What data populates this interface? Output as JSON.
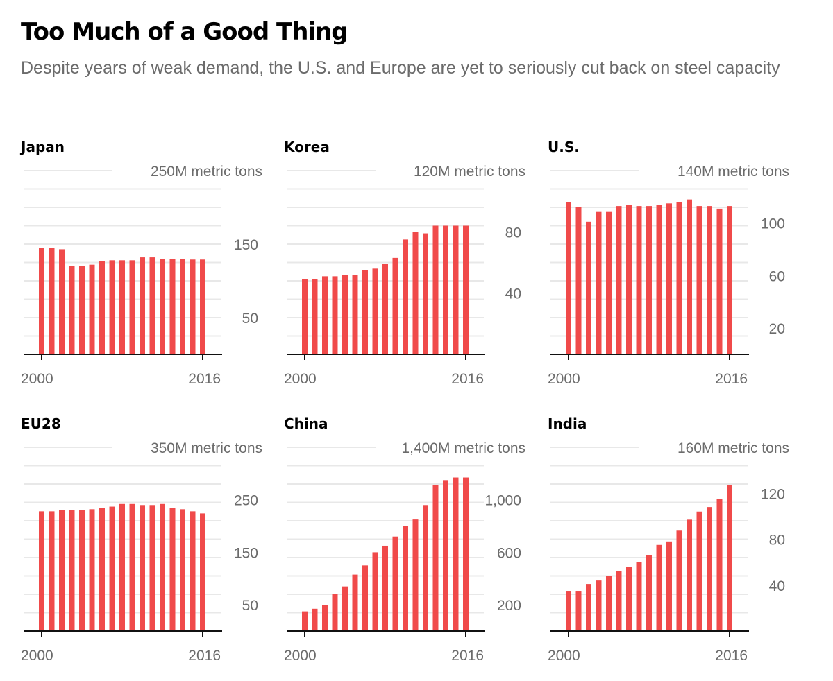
{
  "title": "Too Much of a Good Thing",
  "subtitle": "Despite years of weak demand, the U.S. and Europe are yet to seriously cut back on steel capacity",
  "colors": {
    "bar": "#f04a4a",
    "grid": "#e8e8e8",
    "axis": "#111111",
    "label": "#6b6b6b"
  },
  "chart_data": [
    {
      "type": "bar",
      "name": "Japan",
      "unit_label": "250M metric tons",
      "ylim": [
        0,
        250
      ],
      "yticks": [
        50,
        150
      ],
      "ytick_labels": [
        "50",
        "150"
      ],
      "x_tick_labels": [
        "2000",
        "2016"
      ],
      "x": [
        2000,
        2001,
        2002,
        2003,
        2004,
        2005,
        2006,
        2007,
        2008,
        2009,
        2010,
        2011,
        2012,
        2013,
        2014,
        2015,
        2016
      ],
      "values": [
        145,
        145,
        143,
        120,
        120,
        122,
        127,
        128,
        128,
        128,
        132,
        132,
        130,
        130,
        130,
        129,
        129
      ]
    },
    {
      "type": "bar",
      "name": "Korea",
      "unit_label": "120M metric tons",
      "ylim": [
        0,
        120
      ],
      "yticks": [
        40,
        80
      ],
      "ytick_labels": [
        "40",
        "80"
      ],
      "x_tick_labels": [
        "2000",
        "2016"
      ],
      "x": [
        2000,
        2001,
        2002,
        2003,
        2004,
        2005,
        2006,
        2007,
        2008,
        2009,
        2010,
        2011,
        2012,
        2013,
        2014,
        2015,
        2016
      ],
      "values": [
        49,
        49,
        51,
        51,
        52,
        52,
        55,
        56,
        59,
        63,
        75,
        80,
        79,
        84,
        84,
        84,
        84
      ]
    },
    {
      "type": "bar",
      "name": "U.S.",
      "unit_label": "140M metric tons",
      "ylim": [
        0,
        140
      ],
      "yticks": [
        20,
        60,
        100
      ],
      "ytick_labels": [
        "20",
        "60",
        "100"
      ],
      "x_tick_labels": [
        "2000",
        "2016"
      ],
      "x": [
        2000,
        2001,
        2002,
        2003,
        2004,
        2005,
        2006,
        2007,
        2008,
        2009,
        2010,
        2011,
        2012,
        2013,
        2014,
        2015,
        2016
      ],
      "values": [
        116,
        112,
        101,
        109,
        109,
        113,
        114,
        113,
        113,
        114,
        115,
        116,
        118,
        113,
        113,
        111,
        113
      ]
    },
    {
      "type": "bar",
      "name": "EU28",
      "unit_label": "350M metric tons",
      "ylim": [
        0,
        350
      ],
      "yticks": [
        50,
        150,
        250
      ],
      "ytick_labels": [
        "50",
        "150",
        "250"
      ],
      "x_tick_labels": [
        "2000",
        "2016"
      ],
      "x": [
        2000,
        2001,
        2002,
        2003,
        2004,
        2005,
        2006,
        2007,
        2008,
        2009,
        2010,
        2011,
        2012,
        2013,
        2014,
        2015,
        2016
      ],
      "values": [
        228,
        228,
        230,
        230,
        230,
        232,
        234,
        237,
        242,
        242,
        240,
        240,
        242,
        235,
        232,
        228,
        224
      ]
    },
    {
      "type": "bar",
      "name": "China",
      "unit_label": "1,400M metric tons",
      "ylim": [
        0,
        1400
      ],
      "yticks": [
        200,
        600,
        1000
      ],
      "ytick_labels": [
        "200",
        "600",
        "1,000"
      ],
      "x_tick_labels": [
        "2000",
        "2016"
      ],
      "x": [
        2000,
        2001,
        2002,
        2003,
        2004,
        2005,
        2006,
        2007,
        2008,
        2009,
        2010,
        2011,
        2012,
        2013,
        2014,
        2015,
        2016
      ],
      "values": [
        150,
        170,
        200,
        285,
        340,
        430,
        500,
        600,
        650,
        720,
        800,
        850,
        960,
        1110,
        1150,
        1170,
        1170
      ]
    },
    {
      "type": "bar",
      "name": "India",
      "unit_label": "160M metric tons",
      "ylim": [
        0,
        160
      ],
      "yticks": [
        40,
        80,
        120
      ],
      "ytick_labels": [
        "40",
        "80",
        "120"
      ],
      "x_tick_labels": [
        "2000",
        "2016"
      ],
      "x": [
        2000,
        2001,
        2002,
        2003,
        2004,
        2005,
        2006,
        2007,
        2008,
        2009,
        2010,
        2011,
        2012,
        2013,
        2014,
        2015,
        2016
      ],
      "values": [
        35,
        35,
        41,
        44,
        48,
        52,
        56,
        60,
        66,
        75,
        78,
        88,
        97,
        104,
        108,
        115,
        127
      ]
    }
  ]
}
